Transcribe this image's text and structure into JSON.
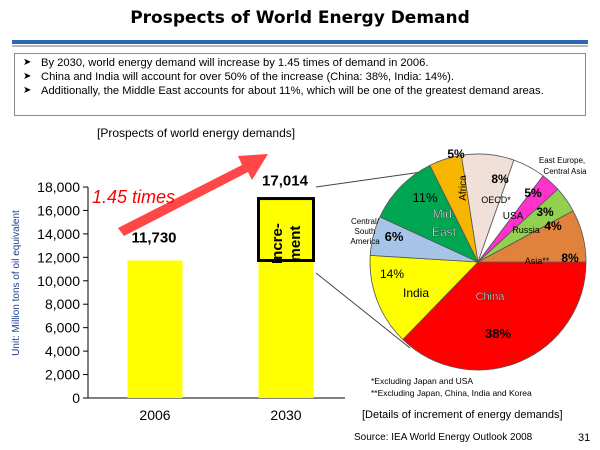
{
  "slide": {
    "title": "Prospects of World Energy Demand",
    "bullets": [
      "By 2030, world energy demand will increase by 1.45 times of demand in 2006.",
      "China and India will account for over 50% of the increase (China: 38%, India: 14%).",
      "Additionally, the Middle East accounts for about 11%, which will be one of the greatest demand areas."
    ],
    "bullet_icon": "arrow-right-icon",
    "source": "Source: IEA World Energy Outlook 2008",
    "page_number": "31"
  },
  "colors": {
    "title_rule": "#2e67b1",
    "bar": "#ffff00",
    "arrow": "#ff3333",
    "times_text": "#ff0000",
    "ylabel": "#1f3f8f"
  },
  "chart_data": [
    {
      "type": "bar",
      "title": "[Prospects of world energy demands]",
      "ylabel": "Unit: Million tons of oil equivalent",
      "xlabel": "",
      "categories": [
        "2006",
        "2030"
      ],
      "values": [
        11730,
        17014
      ],
      "data_labels": [
        "11,730",
        "17,014"
      ],
      "ylim": [
        0,
        18000
      ],
      "yticks": [
        0,
        2000,
        4000,
        6000,
        8000,
        10000,
        12000,
        14000,
        16000,
        18000
      ],
      "ytick_labels": [
        "0",
        "2,000",
        "4,000",
        "6,000",
        "8,000",
        "10,000",
        "12,000",
        "14,000",
        "16,000",
        "18,000"
      ],
      "annotation": "1.45 times",
      "increment_label": [
        "Incre-",
        "ment"
      ]
    },
    {
      "type": "pie",
      "title": "[Details of increment of energy demands]",
      "slices": [
        {
          "label": "China",
          "value": 38,
          "pct": "38%",
          "color": "#ff0000"
        },
        {
          "label": "India",
          "value": 14,
          "pct": "14%",
          "color": "#ffff00"
        },
        {
          "label": "Central/ South America",
          "value": 6,
          "pct": "6%",
          "color": "#a6c4e8"
        },
        {
          "label": "Mid. East",
          "value": 11,
          "pct": "11%",
          "color": "#00a651"
        },
        {
          "label": "Africa",
          "value": 5,
          "pct": "5%",
          "color": "#f7b500"
        },
        {
          "label": "OECD*",
          "value": 8,
          "pct": "8%",
          "color": "#f0e0d8"
        },
        {
          "label": "USA",
          "value": 5,
          "pct": "5%",
          "color": "#ffffff"
        },
        {
          "label": "Russia",
          "value": 3,
          "pct": "3%",
          "color": "#ff33cc"
        },
        {
          "label": "East Europe, Central Asia",
          "value": 4,
          "pct": "4%",
          "color": "#92d050"
        },
        {
          "label": "Asia**",
          "value": 8,
          "pct": "8%",
          "color": "#e0823c"
        }
      ],
      "footnotes": [
        "*Excluding Japan and USA",
        "**Excluding Japan, China, India and Korea"
      ]
    }
  ]
}
